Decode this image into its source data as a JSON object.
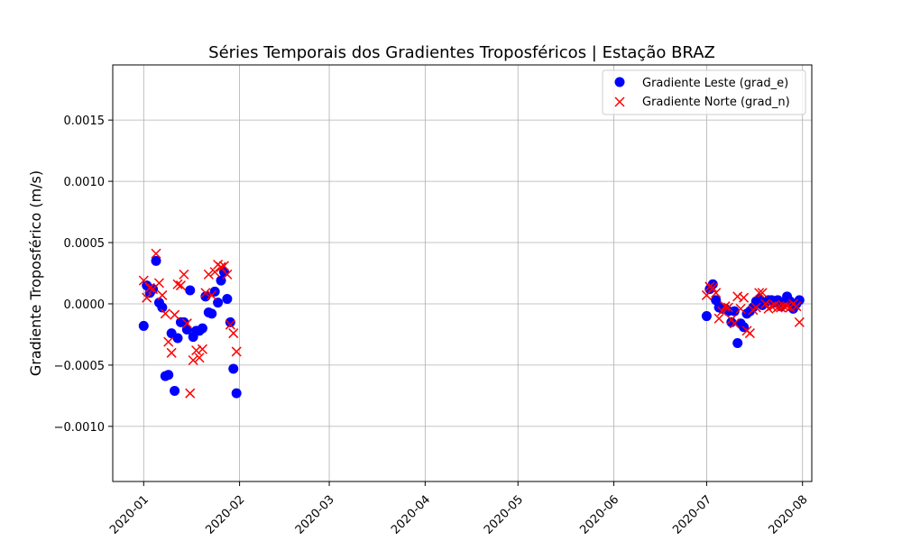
{
  "chart_data": {
    "type": "scatter",
    "title": "Séries Temporais dos Gradientes Troposféricos | Estação BRAZ",
    "xlabel": "",
    "ylabel": "Gradiente Troposférico (m/s)",
    "x_axis_type": "date",
    "xlim": [
      "2019-12-22",
      "2020-08-04"
    ],
    "ylim": [
      -0.00145,
      0.00195
    ],
    "x_ticks": [
      "2020-01-01",
      "2020-02-01",
      "2020-03-01",
      "2020-04-01",
      "2020-05-01",
      "2020-06-01",
      "2020-07-01",
      "2020-08-01"
    ],
    "x_tick_labels": [
      "2020-01",
      "2020-02",
      "2020-03",
      "2020-04",
      "2020-05",
      "2020-06",
      "2020-07",
      "2020-08"
    ],
    "y_ticks": [
      -0.001,
      -0.0005,
      0.0,
      0.0005,
      0.001,
      0.0015
    ],
    "y_tick_labels": [
      "−0.0010",
      "−0.0005",
      "0.0000",
      "0.0005",
      "0.0010",
      "0.0015"
    ],
    "grid": true,
    "legend_position": "top-right",
    "series": [
      {
        "name": "Gradiente Leste (grad_e)",
        "marker": "circle",
        "color": "#0000ff",
        "points": [
          [
            "2020-01-01",
            -0.00018
          ],
          [
            "2020-01-02",
            0.00015
          ],
          [
            "2020-01-03",
            9e-05
          ],
          [
            "2020-01-04",
            0.00012
          ],
          [
            "2020-01-05",
            0.00035
          ],
          [
            "2020-01-06",
            1e-05
          ],
          [
            "2020-01-07",
            -3e-05
          ],
          [
            "2020-01-08",
            -0.00059
          ],
          [
            "2020-01-09",
            -0.00058
          ],
          [
            "2020-01-10",
            -0.00024
          ],
          [
            "2020-01-11",
            -0.00071
          ],
          [
            "2020-01-12",
            -0.00028
          ],
          [
            "2020-01-13",
            -0.00015
          ],
          [
            "2020-01-14",
            -0.00015
          ],
          [
            "2020-01-15",
            -0.00021
          ],
          [
            "2020-01-16",
            0.00011
          ],
          [
            "2020-01-17",
            -0.00027
          ],
          [
            "2020-01-18",
            -0.00022
          ],
          [
            "2020-01-19",
            -0.00022
          ],
          [
            "2020-01-20",
            -0.0002
          ],
          [
            "2020-01-21",
            6e-05
          ],
          [
            "2020-01-22",
            -7e-05
          ],
          [
            "2020-01-23",
            -8e-05
          ],
          [
            "2020-01-24",
            0.0001
          ],
          [
            "2020-01-25",
            1e-05
          ],
          [
            "2020-01-26",
            0.00019
          ],
          [
            "2020-01-27",
            0.00026
          ],
          [
            "2020-01-28",
            4e-05
          ],
          [
            "2020-01-29",
            -0.00015
          ],
          [
            "2020-01-30",
            -0.00053
          ],
          [
            "2020-01-31",
            -0.00073
          ],
          [
            "2020-07-01",
            -0.0001
          ],
          [
            "2020-07-02",
            0.00012
          ],
          [
            "2020-07-03",
            0.00016
          ],
          [
            "2020-07-04",
            3e-05
          ],
          [
            "2020-07-05",
            -3e-05
          ],
          [
            "2020-07-06",
            -4e-05
          ],
          [
            "2020-07-07",
            -4e-05
          ],
          [
            "2020-07-08",
            -6e-05
          ],
          [
            "2020-07-09",
            -0.00015
          ],
          [
            "2020-07-10",
            -6e-05
          ],
          [
            "2020-07-11",
            -0.00032
          ],
          [
            "2020-07-12",
            -0.00016
          ],
          [
            "2020-07-13",
            -0.00019
          ],
          [
            "2020-07-14",
            -8e-05
          ],
          [
            "2020-07-15",
            -6e-05
          ],
          [
            "2020-07-16",
            -3e-05
          ],
          [
            "2020-07-17",
            2e-05
          ],
          [
            "2020-07-18",
            4e-05
          ],
          [
            "2020-07-19",
            -1e-05
          ],
          [
            "2020-07-20",
            1e-05
          ],
          [
            "2020-07-21",
            3e-05
          ],
          [
            "2020-07-22",
            3e-05
          ],
          [
            "2020-07-23",
            1e-05
          ],
          [
            "2020-07-24",
            3e-05
          ],
          [
            "2020-07-25",
            -2e-05
          ],
          [
            "2020-07-26",
            1e-05
          ],
          [
            "2020-07-27",
            6e-05
          ],
          [
            "2020-07-28",
            2e-05
          ],
          [
            "2020-07-29",
            -4e-05
          ],
          [
            "2020-07-30",
            0.0
          ],
          [
            "2020-07-31",
            3e-05
          ]
        ]
      },
      {
        "name": "Gradiente Norte (grad_n)",
        "marker": "x",
        "color": "#ff0000",
        "points": [
          [
            "2020-01-01",
            0.00019
          ],
          [
            "2020-01-02",
            5e-05
          ],
          [
            "2020-01-03",
            0.00013
          ],
          [
            "2020-01-04",
            0.00012
          ],
          [
            "2020-01-05",
            0.00041
          ],
          [
            "2020-01-06",
            0.00017
          ],
          [
            "2020-01-07",
            7e-05
          ],
          [
            "2020-01-08",
            -8e-05
          ],
          [
            "2020-01-09",
            -0.00031
          ],
          [
            "2020-01-10",
            -0.0004
          ],
          [
            "2020-01-11",
            -9e-05
          ],
          [
            "2020-01-12",
            0.00016
          ],
          [
            "2020-01-13",
            0.00015
          ],
          [
            "2020-01-14",
            0.00024
          ],
          [
            "2020-01-15",
            -0.00016
          ],
          [
            "2020-01-16",
            -0.00073
          ],
          [
            "2020-01-17",
            -0.00046
          ],
          [
            "2020-01-18",
            -0.00038
          ],
          [
            "2020-01-19",
            -0.00044
          ],
          [
            "2020-01-20",
            -0.00037
          ],
          [
            "2020-01-21",
            9e-05
          ],
          [
            "2020-01-22",
            0.00024
          ],
          [
            "2020-01-23",
            7e-05
          ],
          [
            "2020-01-24",
            0.00026
          ],
          [
            "2020-01-25",
            0.00032
          ],
          [
            "2020-01-26",
            0.0003
          ],
          [
            "2020-01-27",
            0.00031
          ],
          [
            "2020-01-28",
            0.00024
          ],
          [
            "2020-01-29",
            -0.00017
          ],
          [
            "2020-01-30",
            -0.00024
          ],
          [
            "2020-01-31",
            -0.00039
          ],
          [
            "2020-07-01",
            7e-05
          ],
          [
            "2020-07-02",
            0.00014
          ],
          [
            "2020-07-03",
            0.00013
          ],
          [
            "2020-07-04",
            9e-05
          ],
          [
            "2020-07-05",
            -0.00012
          ],
          [
            "2020-07-06",
            -6e-05
          ],
          [
            "2020-07-07",
            -2e-05
          ],
          [
            "2020-07-08",
            -3e-05
          ],
          [
            "2020-07-09",
            -0.00013
          ],
          [
            "2020-07-10",
            -0.00016
          ],
          [
            "2020-07-11",
            6e-05
          ],
          [
            "2020-07-12",
            -4e-05
          ],
          [
            "2020-07-13",
            5e-05
          ],
          [
            "2020-07-14",
            -0.00022
          ],
          [
            "2020-07-15",
            -0.00024
          ],
          [
            "2020-07-16",
            -5e-05
          ],
          [
            "2020-07-17",
            -3e-05
          ],
          [
            "2020-07-18",
            9e-05
          ],
          [
            "2020-07-19",
            9e-05
          ],
          [
            "2020-07-20",
            0.0
          ],
          [
            "2020-07-21",
            -4e-05
          ],
          [
            "2020-07-22",
            -2e-05
          ],
          [
            "2020-07-23",
            -1e-05
          ],
          [
            "2020-07-24",
            -3e-05
          ],
          [
            "2020-07-25",
            -3e-05
          ],
          [
            "2020-07-26",
            -2e-05
          ],
          [
            "2020-07-27",
            -2e-05
          ],
          [
            "2020-07-28",
            -3e-05
          ],
          [
            "2020-07-29",
            0.0
          ],
          [
            "2020-07-30",
            -2e-05
          ],
          [
            "2020-07-31",
            -0.00015
          ]
        ]
      }
    ]
  }
}
